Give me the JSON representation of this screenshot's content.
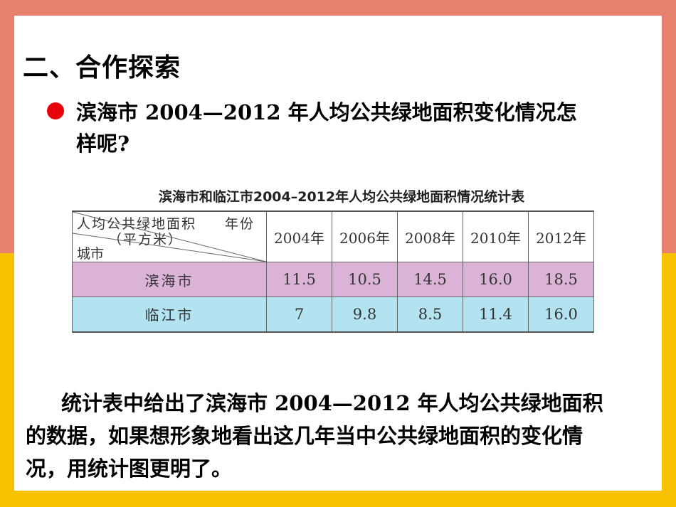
{
  "heading": "二、合作探索",
  "question": "滨海市 2004—2012 年人均公共绿地面积变化情况怎样呢?",
  "table": {
    "title": "滨海市和临江市2004–2012年人均公共绿地面积情况统计表",
    "corner": {
      "metric": "人均公共绿地面积",
      "unit": "（平方米）",
      "year": "年份",
      "city": "城市"
    },
    "years": [
      "2004年",
      "2006年",
      "2008年",
      "2010年",
      "2012年"
    ],
    "rows": [
      {
        "city": "滨海市",
        "values": [
          "11.5",
          "10.5",
          "14.5",
          "16.0",
          "18.5"
        ],
        "color": "#dbb3d6"
      },
      {
        "city": "临江市",
        "values": [
          "7",
          "9.8",
          "8.5",
          "11.4",
          "16.0"
        ],
        "color": "#b3e3f1"
      }
    ]
  },
  "paragraph": "统计表中给出了滨海市 2004—2012 年人均公共绿地面积的数据，如果想形象地看出这几年当中公共绿地面积的变化情况，用统计图更明了。",
  "colors": {
    "outer_top": "#e5816d",
    "outer_bottom": "#f7c100",
    "bullet": "#e8000b"
  }
}
